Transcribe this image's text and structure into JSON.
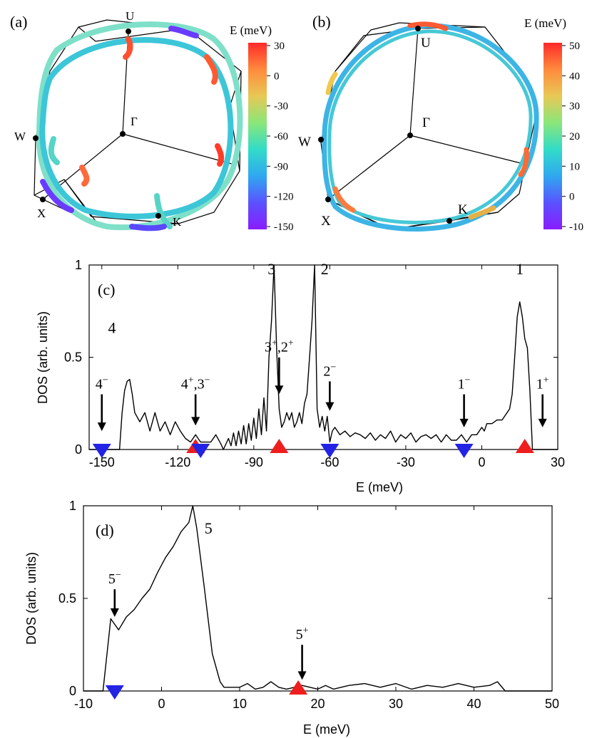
{
  "panel_labels": {
    "a": "(a)",
    "b": "(b)",
    "c": "(c)",
    "d": "(d)"
  },
  "bz_points": {
    "U": "U",
    "Gamma": "Γ",
    "W": "W",
    "X": "X",
    "K": "K"
  },
  "colormaps": {
    "stops": [
      "#8a1cff",
      "#5a52ff",
      "#2fa8f0",
      "#32dcc8",
      "#8ae67a",
      "#e8c855",
      "#ff8a3c",
      "#ff2a2a"
    ],
    "a": {
      "title": "E (meV)",
      "ticks": [
        "30",
        "0",
        "-30",
        "-60",
        "-90",
        "-120",
        "-150"
      ]
    },
    "b": {
      "title": "E (meV)",
      "ticks": [
        "50",
        "40",
        "30",
        "20",
        "10",
        "0",
        "-10"
      ]
    }
  },
  "chart_data": [
    {
      "panel": "c",
      "type": "line",
      "xlabel": "E (meV)",
      "ylabel": "DOS (arb. units)",
      "xlim": [
        -155,
        30
      ],
      "ylim": [
        0,
        1
      ],
      "xticks": [
        -150,
        -120,
        -90,
        -60,
        -30,
        0,
        30
      ],
      "yticks": [
        0,
        0.5,
        1
      ],
      "x": [
        -155,
        -143,
        -142,
        -141,
        -140,
        -139,
        -138,
        -137,
        -135,
        -133,
        -131,
        -129,
        -127,
        -125,
        -123,
        -121,
        -119,
        -117,
        -115,
        -113,
        -111,
        -109,
        -107,
        -105,
        -103,
        -102,
        -100,
        -99,
        -98,
        -97,
        -96,
        -95,
        -94,
        -93,
        -92,
        -91,
        -90,
        -89,
        -88,
        -87,
        -86,
        -85,
        -84,
        -83,
        -82,
        -81,
        -80,
        -79,
        -78,
        -77,
        -76,
        -75,
        -74,
        -73,
        -72,
        -71,
        -70,
        -69,
        -68,
        -67,
        -66,
        -65,
        -64,
        -63,
        -62,
        -61,
        -60,
        -59,
        -58,
        -56,
        -54,
        -52,
        -50,
        -48,
        -46,
        -44,
        -42,
        -40,
        -38,
        -36,
        -34,
        -32,
        -30,
        -28,
        -26,
        -24,
        -22,
        -20,
        -18,
        -16,
        -14,
        -12,
        -10,
        -8,
        -6,
        -4,
        -2,
        0,
        1,
        2,
        4,
        6,
        8,
        10,
        11,
        12,
        13,
        14,
        15,
        16,
        17,
        18,
        19,
        20,
        22,
        30
      ],
      "y": [
        0,
        0,
        0.2,
        0.32,
        0.37,
        0.38,
        0.3,
        0.2,
        0.15,
        0.2,
        0.1,
        0.2,
        0.1,
        0.15,
        0.08,
        0.15,
        0.1,
        0.06,
        0.04,
        0.08,
        0.04,
        0.04,
        0.04,
        0.08,
        0.03,
        0.0,
        0.06,
        0.02,
        0.09,
        0.02,
        0.1,
        0.03,
        0.13,
        0.03,
        0.14,
        0.05,
        0.17,
        0.06,
        0.22,
        0.08,
        0.28,
        0.1,
        0.5,
        0.7,
        1.0,
        0.55,
        0.22,
        0.12,
        0.15,
        0.2,
        0.16,
        0.2,
        0.12,
        0.15,
        0.2,
        0.14,
        0.25,
        0.3,
        0.5,
        0.7,
        1.0,
        0.22,
        0.12,
        0.18,
        0.1,
        0.18,
        0.04,
        0.1,
        0.12,
        0.08,
        0.1,
        0.07,
        0.09,
        0.08,
        0.06,
        0.09,
        0.05,
        0.08,
        0.06,
        0.1,
        0.04,
        0.08,
        0.06,
        0.09,
        0.04,
        0.07,
        0.08,
        0.06,
        0.08,
        0.04,
        0.08,
        0.05,
        0.05,
        0.08,
        0.04,
        0.08,
        0.08,
        0.12,
        0.1,
        0.14,
        0.14,
        0.16,
        0.16,
        0.2,
        0.22,
        0.3,
        0.5,
        0.72,
        0.8,
        0.72,
        0.6,
        0.55,
        0.32,
        0.0,
        0,
        0
      ],
      "peak_labels": [
        {
          "text": "4",
          "x": -146,
          "y": 0.7
        },
        {
          "text": "3",
          "x": -83,
          "y": 1.02
        },
        {
          "text": "2",
          "x": -62,
          "y": 1.02
        },
        {
          "text": "1",
          "x": 15,
          "y": 1.02
        }
      ],
      "annotations": [
        {
          "base": "4",
          "sup": "−",
          "x": -150,
          "label_y": 0.33,
          "arrow_tip": 0.1
        },
        {
          "base": "4",
          "sup": "+",
          "text2": ",3",
          "sup2": "−",
          "x": -113,
          "label_y": 0.33,
          "arrow_tip": 0.13
        },
        {
          "base": "3",
          "sup": "+",
          "text2": ",2",
          "sup2": "+",
          "x": -80,
          "label_y": 0.53,
          "arrow_tip": 0.3
        },
        {
          "base": "2",
          "sup": "−",
          "x": -60,
          "label_y": 0.4,
          "arrow_tip": 0.21
        },
        {
          "base": "1",
          "sup": "−",
          "x": -7,
          "label_y": 0.33,
          "arrow_tip": 0.12
        },
        {
          "base": "1",
          "sup": "+",
          "x": 24,
          "label_y": 0.33,
          "arrow_tip": 0.12
        }
      ],
      "markers": [
        {
          "x": -150,
          "dir": "down",
          "color": "#2323e6"
        },
        {
          "x": -113,
          "dir": "up",
          "color": "#ee1e1e"
        },
        {
          "x": -111,
          "dir": "down",
          "color": "#2323e6"
        },
        {
          "x": -80,
          "dir": "up",
          "color": "#ee1e1e"
        },
        {
          "x": -60,
          "dir": "down",
          "color": "#2323e6"
        },
        {
          "x": -7,
          "dir": "down",
          "color": "#2323e6"
        },
        {
          "x": 17,
          "dir": "up",
          "color": "#ee1e1e"
        }
      ]
    },
    {
      "panel": "d",
      "type": "line",
      "xlabel": "E (meV)",
      "ylabel": "DOS (arb. units)",
      "xlim": [
        -10,
        50
      ],
      "ylim": [
        0,
        1
      ],
      "xticks": [
        -10,
        0,
        10,
        20,
        30,
        40,
        50
      ],
      "yticks": [
        0,
        0.5,
        1
      ],
      "x": [
        -10,
        -7.5,
        -6.5,
        -5.5,
        -4.5,
        -3.5,
        -2.5,
        -1.5,
        -0.5,
        0.5,
        1.5,
        2.5,
        3.5,
        4.0,
        4.5,
        5.5,
        6.5,
        7.5,
        8.0,
        9,
        10,
        11,
        12,
        13,
        14,
        15,
        16,
        17,
        18,
        19,
        20,
        21,
        22,
        24,
        26,
        28,
        30,
        32,
        34,
        36,
        38,
        40,
        42,
        43,
        44,
        50
      ],
      "y": [
        0,
        0,
        0.39,
        0.33,
        0.4,
        0.44,
        0.5,
        0.55,
        0.64,
        0.72,
        0.78,
        0.86,
        0.91,
        1.0,
        0.88,
        0.55,
        0.2,
        0.05,
        0.02,
        0.02,
        0.02,
        0.04,
        0.01,
        0.02,
        0.05,
        0.02,
        0.01,
        0.02,
        0.03,
        0.02,
        0.01,
        0.03,
        0.01,
        0.03,
        0.04,
        0.02,
        0.04,
        0.01,
        0.03,
        0.02,
        0.04,
        0.02,
        0.03,
        0.05,
        0,
        0
      ],
      "peak_labels": [
        {
          "text": "5",
          "x": 6,
          "y": 0.92
        }
      ],
      "annotations": [
        {
          "base": "5",
          "sup": "−",
          "x": -6,
          "label_y": 0.58,
          "arrow_tip": 0.4
        },
        {
          "base": "5",
          "sup": "+",
          "x": 18,
          "label_y": 0.28,
          "arrow_tip": 0.06
        }
      ],
      "markers": [
        {
          "x": -6,
          "dir": "down",
          "color": "#2323e6"
        },
        {
          "x": 17.5,
          "dir": "up",
          "color": "#ee1e1e"
        }
      ]
    }
  ]
}
